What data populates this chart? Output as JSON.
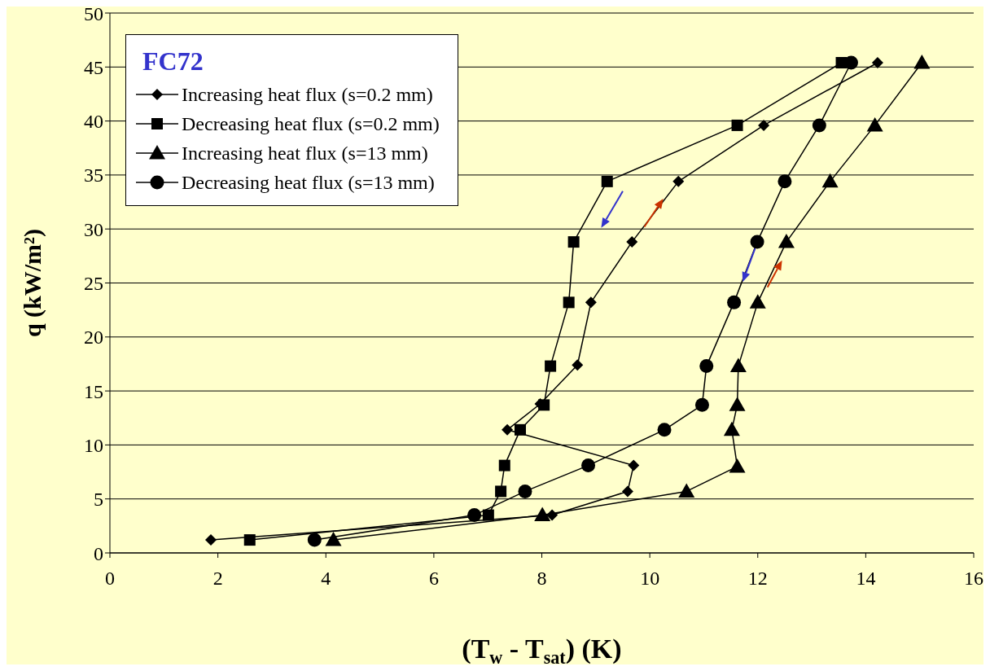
{
  "chart_data": {
    "type": "line",
    "legend_title": "FC72",
    "xlabel": "(T$_{w}$ - T$_{sat}$) (K)",
    "ylabel": "q (kW/m²)",
    "xlim": [
      0,
      16
    ],
    "xticks": [
      0,
      2,
      4,
      6,
      8,
      10,
      12,
      14,
      16
    ],
    "ylim": [
      0,
      50
    ],
    "yticks": [
      0,
      5,
      10,
      15,
      20,
      25,
      30,
      35,
      40,
      45,
      50
    ],
    "grid": "y",
    "legend": "top left",
    "line_style": "solid",
    "series": [
      {
        "name": "Increasing heat flux (s=0.2 mm)",
        "color": "#000000",
        "marker": "diamond",
        "x": [
          1.87,
          8.19,
          9.59,
          9.7,
          7.36,
          7.97,
          8.66,
          8.91,
          9.67,
          10.53,
          12.11,
          14.22
        ],
        "values": [
          1.2,
          3.5,
          5.7,
          8.1,
          11.4,
          13.8,
          17.4,
          23.2,
          28.8,
          34.4,
          39.6,
          45.4
        ]
      },
      {
        "name": "Decreasing heat flux (s=0.2 mm)",
        "color": "#000000",
        "marker": "square",
        "x": [
          13.55,
          11.62,
          9.21,
          8.59,
          8.5,
          8.16,
          8.04,
          7.6,
          7.31,
          7.24,
          7.01,
          2.59
        ],
        "values": [
          45.4,
          39.6,
          34.4,
          28.8,
          23.2,
          17.3,
          13.7,
          11.4,
          8.1,
          5.7,
          3.5,
          1.2
        ]
      },
      {
        "name": "Increasing heat flux (s=13 mm)",
        "color": "#000000",
        "marker": "triangle",
        "x": [
          4.14,
          8.01,
          10.68,
          11.62,
          11.52,
          11.62,
          11.64,
          12.0,
          12.53,
          13.34,
          14.17,
          15.04
        ],
        "values": [
          1.2,
          3.5,
          5.7,
          8.0,
          11.4,
          13.7,
          17.3,
          23.2,
          28.8,
          34.4,
          39.6,
          45.4
        ]
      },
      {
        "name": "Decreasing heat flux (s=13 mm)",
        "color": "#000000",
        "marker": "circle",
        "x": [
          13.73,
          13.14,
          12.5,
          11.99,
          11.56,
          11.05,
          10.97,
          10.27,
          8.86,
          7.69,
          6.75,
          3.79
        ],
        "values": [
          45.4,
          39.6,
          34.4,
          28.8,
          23.2,
          17.3,
          13.7,
          11.4,
          8.1,
          5.7,
          3.5,
          1.2
        ]
      }
    ]
  }
}
